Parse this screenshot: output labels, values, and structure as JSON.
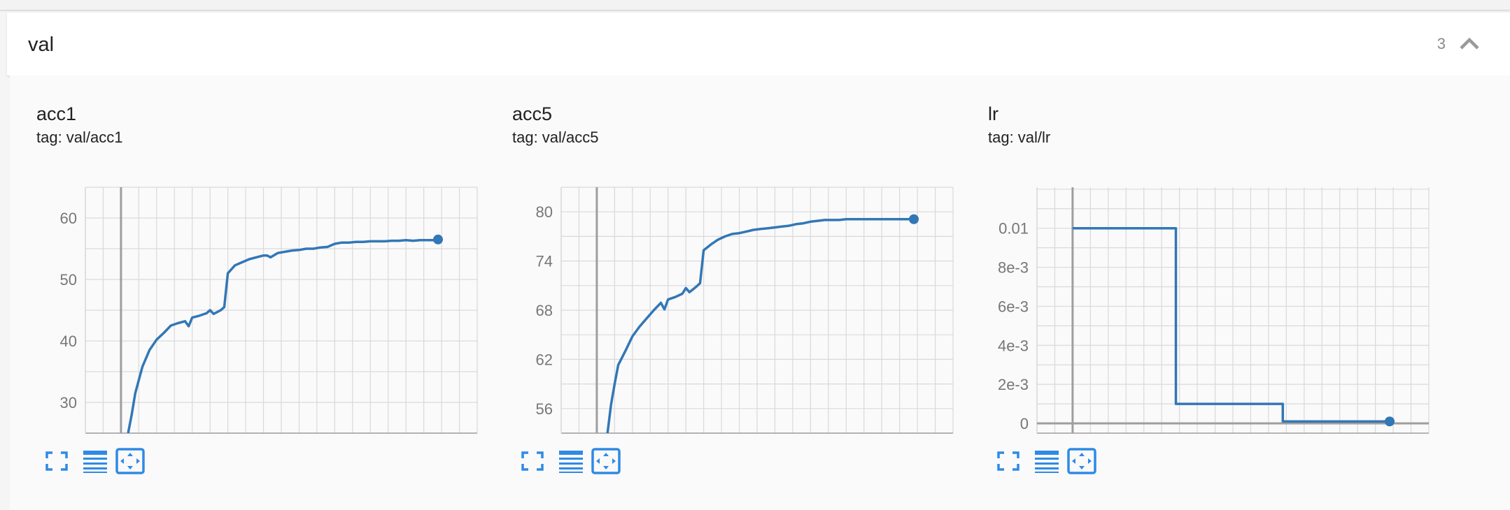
{
  "group": {
    "title": "val",
    "count": "3"
  },
  "colors": {
    "line": "#3277b6",
    "grid": "#d9d9d9",
    "axis": "#9e9e9e",
    "tick_text": "#777777",
    "icon": "#2f8ae5"
  },
  "icons": [
    "fullscreen-icon",
    "data-table-icon",
    "fit-domain-icon",
    "chevron-up-icon"
  ],
  "chart_data": [
    {
      "type": "line",
      "title": "acc1",
      "tag": "tag: val/acc1",
      "xlim": [
        -10,
        100
      ],
      "ylim": [
        25,
        65
      ],
      "xticks": [
        0,
        10,
        20,
        30,
        40,
        50,
        60,
        70,
        80,
        90
      ],
      "yticks": [
        30,
        40,
        50,
        60
      ],
      "ytick_labels": [
        "30",
        "40",
        "50",
        "60"
      ],
      "grid": true,
      "series": [
        {
          "x": [
            2,
            3,
            4,
            6,
            8,
            10,
            12,
            14,
            16,
            18,
            19,
            20,
            22,
            24,
            25,
            26,
            28,
            29,
            30,
            32,
            34,
            36,
            38,
            40,
            41,
            42,
            44,
            46,
            48,
            50,
            52,
            54,
            56,
            58,
            60,
            62,
            64,
            66,
            68,
            70,
            72,
            74,
            76,
            78,
            80,
            82,
            84,
            86,
            88,
            89
          ],
          "y": [
            25,
            28,
            31.5,
            35.8,
            38.5,
            40.2,
            41.3,
            42.5,
            42.9,
            43.2,
            42.4,
            43.8,
            44.1,
            44.5,
            45,
            44.4,
            45,
            45.5,
            51,
            52.3,
            52.8,
            53.3,
            53.6,
            53.9,
            53.9,
            53.6,
            54.3,
            54.5,
            54.7,
            54.8,
            55,
            55,
            55.2,
            55.3,
            55.8,
            56,
            56,
            56.1,
            56.1,
            56.2,
            56.2,
            56.2,
            56.3,
            56.3,
            56.4,
            56.3,
            56.4,
            56.4,
            56.4,
            56.5
          ]
        }
      ]
    },
    {
      "type": "line",
      "title": "acc5",
      "tag": "tag: val/acc5",
      "xlim": [
        -10,
        100
      ],
      "ylim": [
        53,
        83
      ],
      "xticks": [
        0,
        10,
        20,
        30,
        40,
        50,
        60,
        70,
        80,
        90
      ],
      "yticks": [
        56,
        62,
        68,
        74,
        80
      ],
      "ytick_labels": [
        "56",
        "62",
        "68",
        "74",
        "80"
      ],
      "grid": true,
      "series": [
        {
          "x": [
            3,
            4,
            5,
            6,
            8,
            10,
            12,
            14,
            16,
            18,
            19,
            20,
            22,
            24,
            25,
            26,
            28,
            29,
            30,
            32,
            34,
            36,
            38,
            40,
            42,
            44,
            46,
            48,
            50,
            52,
            54,
            56,
            58,
            60,
            62,
            64,
            66,
            68,
            70,
            72,
            74,
            76,
            78,
            80,
            82,
            84,
            86,
            88,
            89
          ],
          "y": [
            53,
            56.5,
            59,
            61.3,
            63,
            64.8,
            66,
            67,
            68,
            68.9,
            68.1,
            69.3,
            69.6,
            70,
            70.7,
            70.2,
            70.9,
            71.3,
            75.3,
            76,
            76.6,
            77,
            77.3,
            77.4,
            77.6,
            77.8,
            77.9,
            78,
            78.1,
            78.2,
            78.3,
            78.5,
            78.6,
            78.8,
            78.9,
            79,
            79,
            79,
            79.1,
            79.1,
            79.1,
            79.1,
            79.1,
            79.1,
            79.1,
            79.1,
            79.1,
            79.1,
            79.1
          ]
        }
      ]
    },
    {
      "type": "line",
      "title": "lr",
      "tag": "tag: val/lr",
      "xlim": [
        -10,
        100
      ],
      "ylim": [
        -0.0005,
        0.0121
      ],
      "xticks": [
        0,
        10,
        20,
        30,
        40,
        50,
        60,
        70,
        80,
        90
      ],
      "yticks": [
        0,
        0.002,
        0.004,
        0.006,
        0.008,
        0.01
      ],
      "ytick_labels": [
        "0",
        "2e-3",
        "4e-3",
        "6e-3",
        "8e-3",
        "0.01"
      ],
      "grid": true,
      "series": [
        {
          "x": [
            0,
            29,
            29,
            59,
            59,
            89
          ],
          "y": [
            0.01,
            0.01,
            0.001,
            0.001,
            0.0001,
            0.0001
          ]
        }
      ]
    }
  ]
}
